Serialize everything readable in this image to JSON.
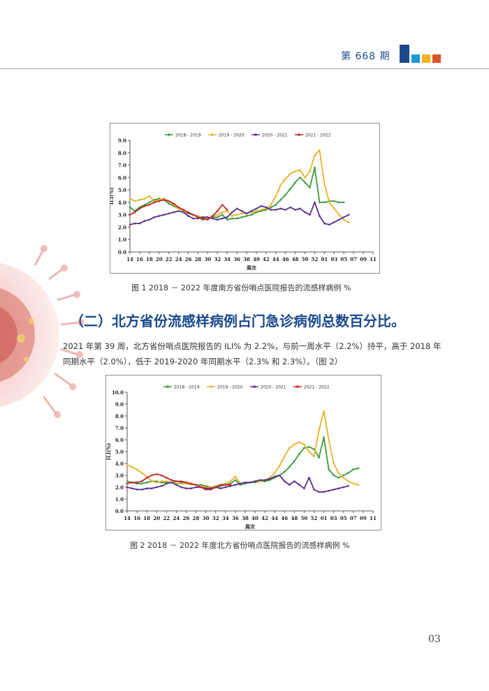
{
  "header": {
    "issue": "第 668 期",
    "block_colors": [
      "#1a4a8c",
      "#1a9ad6",
      "#f5b324",
      "#d9542a"
    ]
  },
  "figure1": {
    "caption": "图 1  2018 － 2022 年度南方省份哨点医院报告的流感样病例 %",
    "chart_data": {
      "type": "line",
      "ylabel": "ILI(%)",
      "xlabel": "周次",
      "ylim": [
        0,
        9
      ],
      "yticks": [
        "0.0",
        "1.0",
        "2.0",
        "3.0",
        "4.0",
        "5.0",
        "6.0",
        "7.0",
        "8.0",
        "9.0"
      ],
      "xticks": [
        "14",
        "16",
        "18",
        "20",
        "22",
        "24",
        "26",
        "28",
        "30",
        "32",
        "34",
        "36",
        "38",
        "40",
        "42",
        "44",
        "46",
        "48",
        "50",
        "52",
        "01",
        "03",
        "05",
        "07",
        "09",
        "11"
      ],
      "series": [
        {
          "name": "2018 - 2019",
          "color": "#3a9a3a",
          "values": [
            3.6,
            3.3,
            3.6,
            3.8,
            4.0,
            4.2,
            4.3,
            4.2,
            3.9,
            3.7,
            3.5,
            3.3,
            3.1,
            3.0,
            2.8,
            2.6,
            2.7,
            2.8,
            2.8,
            3.0,
            2.6,
            2.7,
            2.7,
            2.8,
            2.9,
            3.0,
            3.2,
            3.3,
            3.4,
            3.6,
            3.8,
            4.2,
            4.6,
            5.1,
            5.6,
            6.0,
            5.6,
            5.2,
            6.8,
            4.0,
            4.0,
            4.1,
            4.1,
            4.0,
            4.0
          ]
        },
        {
          "name": "2019 - 2020",
          "color": "#e6b22e",
          "values": [
            4.3,
            4.1,
            4.2,
            4.3,
            4.5,
            4.1,
            4.2,
            4.3,
            4.1,
            3.8,
            3.5,
            3.3,
            3.2,
            3.0,
            2.9,
            2.8,
            2.7,
            2.9,
            3.0,
            3.2,
            3.3,
            2.9,
            3.0,
            3.1,
            3.1,
            3.2,
            3.3,
            3.4,
            3.5,
            3.8,
            4.5,
            5.4,
            5.9,
            6.3,
            6.5,
            6.6,
            6.0,
            6.5,
            7.8,
            8.2,
            5.5,
            4.0,
            3.5,
            3.0,
            2.6,
            2.4
          ]
        },
        {
          "name": "2020 - 2021",
          "color": "#5a2f8f",
          "values": [
            2.2,
            2.3,
            2.3,
            2.5,
            2.6,
            2.8,
            2.9,
            3.0,
            3.1,
            3.2,
            3.3,
            3.2,
            2.9,
            2.7,
            2.7,
            2.8,
            2.8,
            2.7,
            2.6,
            2.7,
            2.8,
            3.2,
            3.5,
            3.3,
            3.1,
            3.3,
            3.5,
            3.7,
            3.6,
            3.4,
            3.4,
            3.5,
            3.4,
            3.6,
            3.4,
            3.5,
            3.2,
            3.0,
            4.0,
            2.9,
            2.3,
            2.2,
            2.4,
            2.6,
            2.8,
            3.0
          ]
        },
        {
          "name": "2021 - 2022",
          "color": "#c0262c",
          "values": [
            3.0,
            3.2,
            3.5,
            3.7,
            3.8,
            4.0,
            4.1,
            4.2,
            4.1,
            3.9,
            3.6,
            3.4,
            3.2,
            3.0,
            2.8,
            2.7,
            2.6,
            2.9,
            3.3,
            3.8,
            3.4
          ]
        }
      ]
    }
  },
  "section": {
    "title": "（二）北方省份流感样病例占门急诊病例总数百分比。",
    "paragraph": "2021 年第 39 周，北方省份哨点医院报告的 ILI% 为 2.2%，与前一周水平（2.2%）持平，高于 2018 年同期水平（2.0%），低于 2019-2020 年同期水平（2.3% 和 2.3%）。（图 2）"
  },
  "figure2": {
    "caption": "图 2  2018 － 2022 年度北方省份哨点医院报告的流感样病例 %",
    "chart_data": {
      "type": "line",
      "ylabel": "ILI(%)",
      "xlabel": "周次",
      "ylim": [
        0,
        10
      ],
      "yticks": [
        "0.0",
        "1.0",
        "2.0",
        "3.0",
        "4.0",
        "5.0",
        "6.0",
        "7.0",
        "8.0",
        "9.0",
        "10.0"
      ],
      "xticks": [
        "14",
        "16",
        "18",
        "20",
        "22",
        "24",
        "26",
        "28",
        "30",
        "32",
        "34",
        "36",
        "38",
        "40",
        "42",
        "44",
        "46",
        "48",
        "50",
        "52",
        "01",
        "03",
        "05",
        "07",
        "09",
        "11"
      ],
      "series": [
        {
          "name": "2018 - 2019",
          "color": "#3a9a3a",
          "values": [
            2.5,
            2.4,
            2.3,
            2.3,
            2.4,
            2.5,
            2.5,
            2.4,
            2.4,
            2.4,
            2.5,
            2.4,
            2.3,
            2.3,
            2.2,
            2.2,
            2.1,
            2.0,
            2.0,
            2.1,
            2.2,
            2.3,
            2.6,
            2.2,
            2.3,
            2.4,
            2.4,
            2.5,
            2.5,
            2.6,
            2.8,
            3.0,
            3.3,
            3.7,
            4.2,
            4.8,
            5.3,
            5.4,
            5.2,
            4.5,
            6.2,
            3.5,
            3.0,
            2.8,
            3.0,
            3.2,
            3.5,
            3.6
          ]
        },
        {
          "name": "2019 - 2020",
          "color": "#e6b22e",
          "values": [
            3.9,
            3.7,
            3.5,
            3.2,
            2.9,
            2.5,
            2.4,
            2.5,
            2.5,
            2.4,
            2.3,
            2.3,
            2.3,
            2.2,
            2.2,
            2.1,
            2.0,
            2.0,
            2.1,
            2.2,
            2.3,
            2.5,
            2.9,
            2.3,
            2.4,
            2.4,
            2.5,
            2.5,
            2.6,
            2.8,
            3.2,
            3.8,
            4.6,
            5.3,
            5.6,
            5.8,
            5.6,
            5.0,
            4.6,
            6.8,
            8.4,
            6.0,
            4.0,
            3.2,
            2.8,
            2.5,
            2.3,
            2.2
          ]
        },
        {
          "name": "2020 - 2021",
          "color": "#5a2f8f",
          "values": [
            2.0,
            1.9,
            1.8,
            1.8,
            1.9,
            1.9,
            2.0,
            2.1,
            2.3,
            2.4,
            2.2,
            2.0,
            1.9,
            1.9,
            2.0,
            2.0,
            1.9,
            1.9,
            2.0,
            1.9,
            2.0,
            2.1,
            2.2,
            2.3,
            2.4,
            2.4,
            2.5,
            2.6,
            2.6,
            2.7,
            2.9,
            3.0,
            2.5,
            2.2,
            2.5,
            2.2,
            1.9,
            2.8,
            1.8,
            1.6,
            1.6,
            1.7,
            1.8,
            1.9,
            2.0,
            2.1
          ]
        },
        {
          "name": "2021 - 2022",
          "color": "#c0262c",
          "values": [
            2.3,
            2.4,
            2.4,
            2.5,
            2.8,
            3.0,
            3.1,
            3.0,
            2.8,
            2.6,
            2.5,
            2.5,
            2.4,
            2.3,
            2.2,
            2.0,
            1.8,
            1.8,
            2.0,
            2.2,
            2.2,
            2.2
          ]
        }
      ]
    }
  },
  "page_number": "03"
}
